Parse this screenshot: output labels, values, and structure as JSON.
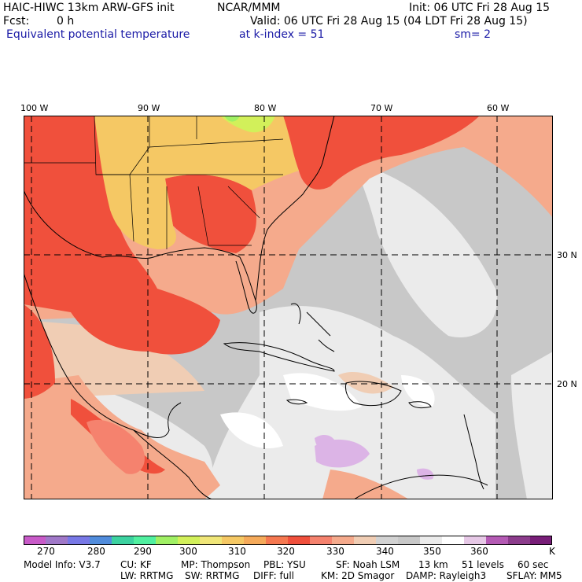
{
  "header": {
    "model_title": "HAIC-HIWC 13km ARW-GFS init",
    "org": "NCAR/MMM",
    "init": "Init: 06 UTC Fri 28 Aug 15",
    "fcst_label": "Fcst:",
    "fcst_value": "0 h",
    "valid": "Valid: 06 UTC Fri 28 Aug 15 (04 LDT Fri 28 Aug 15)",
    "field": "Equivalent potential temperature",
    "level": "at k-index =  51",
    "smooth": "sm= 2"
  },
  "map": {
    "lon_labels": [
      "100 W",
      "90 W",
      "80 W",
      "70 W",
      "60 W"
    ],
    "lat_labels": [
      "30 N",
      "20 N"
    ],
    "colors": {
      "ocean_gray": "#c8c8c8",
      "warm_red": "#f0503c",
      "salmon": "#f59678",
      "orange": "#f5b464",
      "light": "#f0f0f0",
      "lavender": "#dcb4e6"
    }
  },
  "colorbar": {
    "unit": "K",
    "labels": [
      "270",
      "280",
      "290",
      "300",
      "310",
      "320",
      "330",
      "340",
      "350",
      "360"
    ],
    "colors": [
      "#c85ac8",
      "#a078c8",
      "#7878e6",
      "#508cdc",
      "#3cd2a0",
      "#50f0a0",
      "#a0f064",
      "#d2f05a",
      "#f0e678",
      "#f5c864",
      "#f5aa5a",
      "#f57850",
      "#f0503c",
      "#f5826e",
      "#f5aa8c",
      "#f0cdb4",
      "#d2d2d2",
      "#c8c8c8",
      "#ebebeb",
      "#ffffff",
      "#e6c8e6",
      "#b45ab4",
      "#8c3c8c",
      "#781e78"
    ]
  },
  "footer": {
    "line1": [
      "Model Info: V3.7",
      "CU: KF",
      "MP: Thompson",
      "PBL: YSU",
      "SF: Noah LSM",
      "13 km",
      "51 levels",
      "60 sec"
    ],
    "line2": [
      "LW: RRTMG",
      "SW: RRTMG",
      "DIFF: full",
      "KM: 2D Smagor",
      "DAMP: Rayleigh3",
      "SFLAY: MM5"
    ]
  }
}
